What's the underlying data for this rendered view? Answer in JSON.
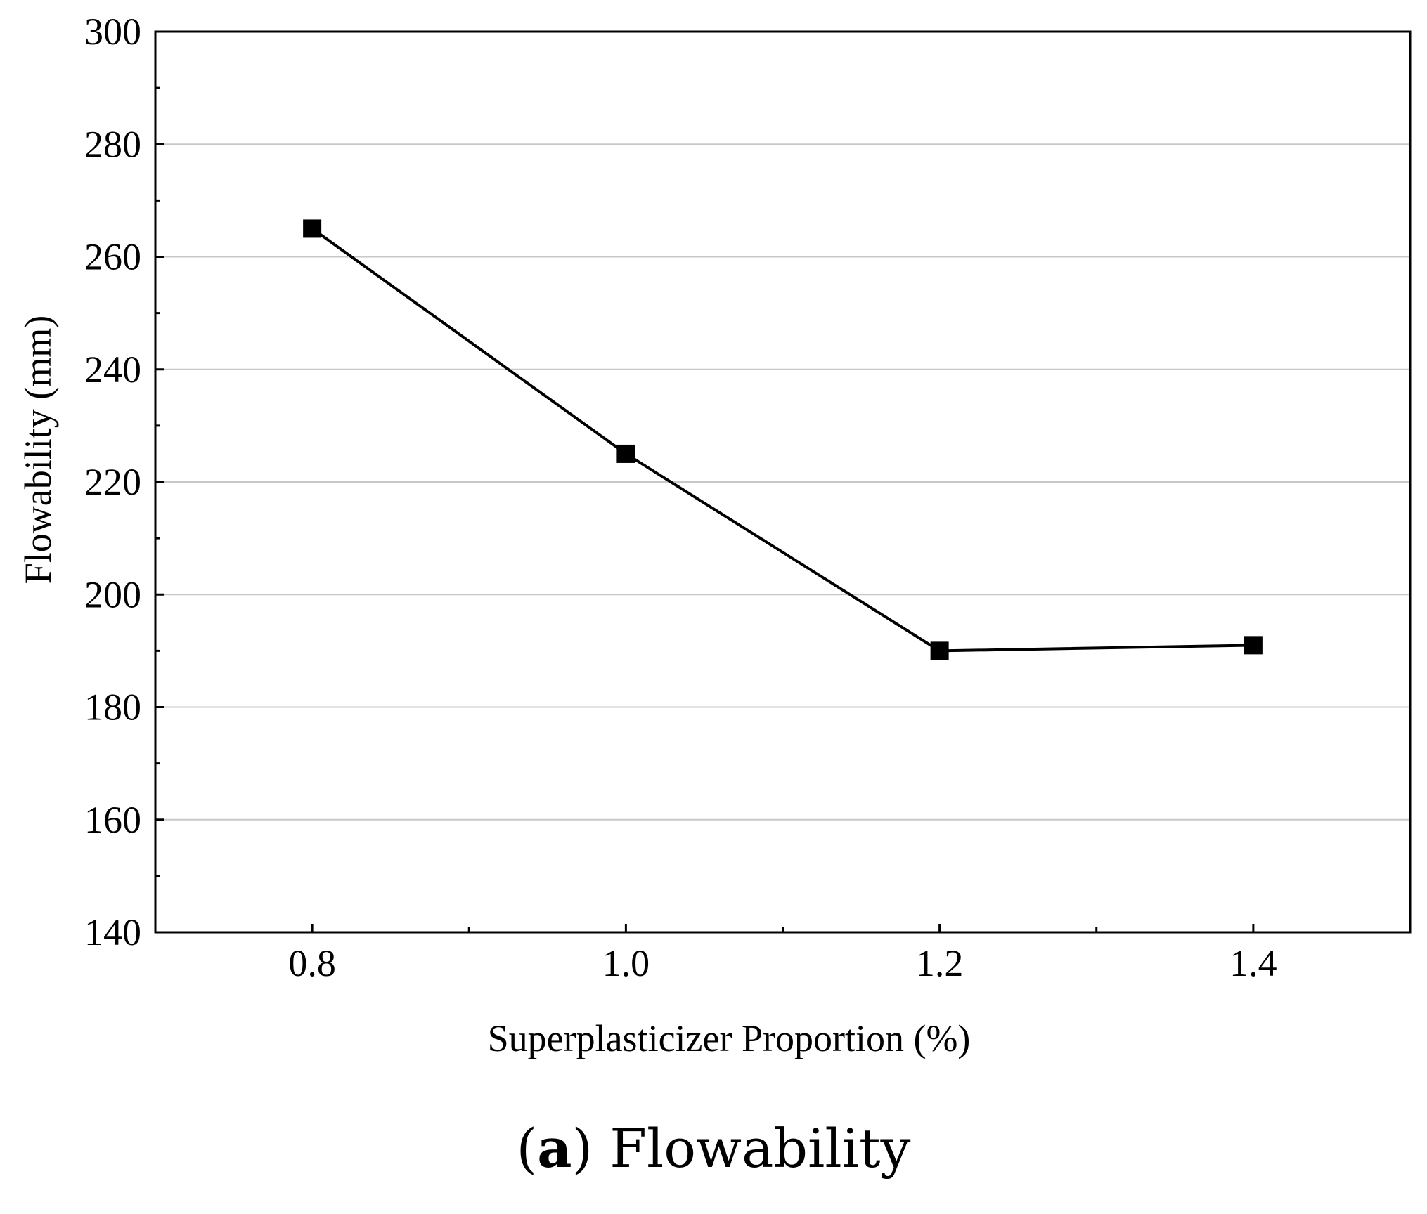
{
  "chart_data": {
    "type": "line",
    "title": "",
    "xlabel": "Superplasticizer Proportion (%)",
    "ylabel": "Flowability (mm)",
    "x": [
      0.8,
      1.0,
      1.2,
      1.4
    ],
    "series": [
      {
        "name": "Flowability",
        "values": [
          265,
          225,
          190,
          191
        ],
        "marker": "square",
        "color": "#000000"
      }
    ],
    "xlim": [
      0.7,
      1.5
    ],
    "ylim": [
      140,
      300
    ],
    "xticks": [
      "0.8",
      "1.0",
      "1.2",
      "1.4"
    ],
    "yticks": [
      "140",
      "160",
      "180",
      "200",
      "220",
      "240",
      "260",
      "280",
      "300"
    ],
    "grid": "horizontal"
  },
  "caption": {
    "letter": "a",
    "open_paren": "(",
    "close_paren": ")",
    "text": " Flowability"
  }
}
